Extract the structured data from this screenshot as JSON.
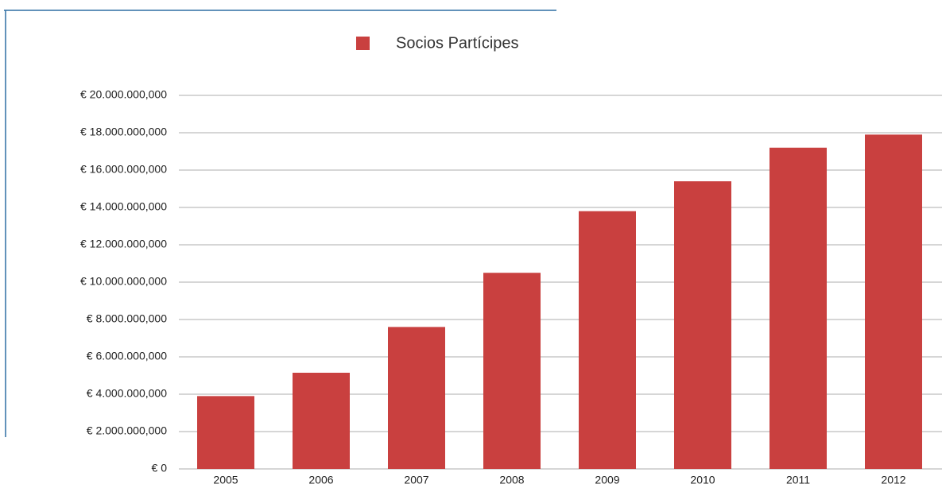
{
  "chart_data": {
    "type": "bar",
    "categories": [
      "2005",
      "2006",
      "2007",
      "2008",
      "2009",
      "2010",
      "2011",
      "2012"
    ],
    "series": [
      {
        "name": "Socios Partícipes",
        "color": "#c9403f",
        "values": [
          3900000000,
          5150000000,
          7600000000,
          10500000000,
          13800000000,
          15400000000,
          17200000000,
          17900000000
        ]
      }
    ],
    "ylim": [
      0,
      20000000000
    ],
    "yticks": [
      {
        "value": 0,
        "label": "€ 0"
      },
      {
        "value": 2000000000,
        "label": "€ 2.000.000,000"
      },
      {
        "value": 4000000000,
        "label": "€ 4.000.000,000"
      },
      {
        "value": 6000000000,
        "label": "€ 6.000.000,000"
      },
      {
        "value": 8000000000,
        "label": "€ 8.000.000,000"
      },
      {
        "value": 10000000000,
        "label": "€ 10.000.000,000"
      },
      {
        "value": 12000000000,
        "label": "€ 12.000.000,000"
      },
      {
        "value": 14000000000,
        "label": "€ 14.000.000,000"
      },
      {
        "value": 16000000000,
        "label": "€ 16.000.000,000"
      },
      {
        "value": 18000000000,
        "label": "€ 18.000.000,000"
      },
      {
        "value": 20000000000,
        "label": "€ 20.000.000,000"
      }
    ],
    "grid": true,
    "legend": "top"
  }
}
